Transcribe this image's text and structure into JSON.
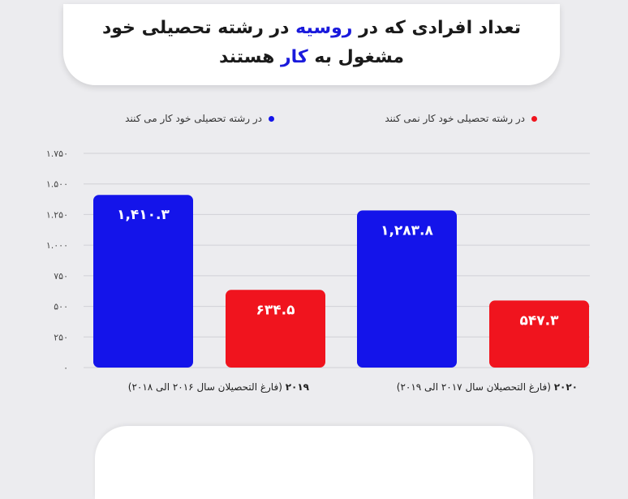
{
  "title": {
    "line1_before": "تعداد افرادی که در ",
    "line1_highlight": "روسیه",
    "line1_after": " در رشته تحصیلی خود",
    "line2_before": "مشغول به ",
    "line2_highlight": "کار",
    "line2_after": " هستند"
  },
  "colors": {
    "blue": "#1414ea",
    "red": "#f0141e",
    "highlight": "#1a1adc"
  },
  "chart_data": {
    "type": "bar",
    "categories": [
      {
        "year": "۲۰۱۹",
        "desc": " (فارغ التحصیلان سال ۲۰۱۶ الی ۲۰۱۸)"
      },
      {
        "year": "۲۰۲۰",
        "desc": " (فارغ التحصیلان سال ۲۰۱۷ الی ۲۰۱۹)"
      }
    ],
    "series": [
      {
        "name": "در رشته تحصیلی خود کار می کنند",
        "color": "#1414ea",
        "values": [
          1410.3,
          1283.8
        ],
        "labels": [
          "۱,۴۱۰.۳",
          "۱,۲۸۳.۸"
        ]
      },
      {
        "name": "در رشته تحصیلی خود کار نمی کنند",
        "color": "#f0141e",
        "values": [
          634.5,
          547.3
        ],
        "labels": [
          "۶۳۴.۵",
          "۵۴۷.۳"
        ]
      }
    ],
    "yticks": [
      0,
      250,
      500,
      750,
      1000,
      1250,
      1500,
      1750
    ],
    "ytick_labels": [
      "۰",
      "۲۵۰",
      "۵۰۰",
      "۷۵۰",
      "۱.۰۰۰",
      "۱.۲۵۰",
      "۱.۵۰۰",
      "۱.۷۵۰"
    ],
    "ylim": [
      0,
      1750
    ],
    "grid": true,
    "legend": "top"
  }
}
